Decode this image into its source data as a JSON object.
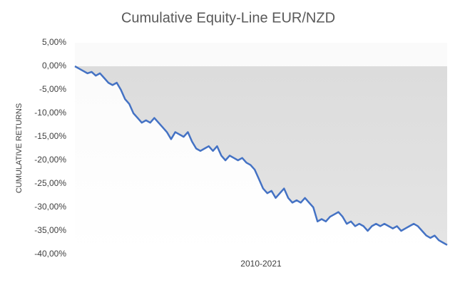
{
  "chart_data": {
    "type": "line",
    "title": "Cumulative Equity-Line EUR/NZD",
    "ylabel": "CUMULATIVE RETURNS",
    "xlabel": "2010-2021",
    "series": [
      {
        "name": "Cumulative returns",
        "color": "#4472c4",
        "values": [
          0,
          -0.5,
          -1,
          -1.5,
          -1.2,
          -2,
          -1.5,
          -2.5,
          -3.5,
          -4,
          -3.5,
          -5,
          -7,
          -8,
          -10,
          -11,
          -12,
          -11.5,
          -12,
          -11,
          -12,
          -13,
          -14,
          -15.5,
          -14,
          -14.5,
          -15,
          -14,
          -16,
          -17.5,
          -18,
          -17.5,
          -17,
          -18,
          -17,
          -19,
          -20,
          -19,
          -19.5,
          -20,
          -19.5,
          -20.5,
          -21,
          -22,
          -24,
          -26,
          -27,
          -26.5,
          -28,
          -27,
          -26,
          -28,
          -29,
          -28.5,
          -29,
          -28,
          -29,
          -30,
          -33,
          -32.5,
          -33,
          -32,
          -31.5,
          -31,
          -32,
          -33.5,
          -33,
          -34,
          -33.5,
          -34,
          -35,
          -34,
          -33.5,
          -34,
          -33.5,
          -34,
          -34.5,
          -34,
          -35,
          -34.5,
          -34,
          -33.5,
          -34,
          -35,
          -36,
          -36.5,
          -36,
          -37,
          -37.5,
          -38
        ]
      }
    ],
    "ylim": [
      -40,
      5
    ],
    "yticks": [
      {
        "value": 5,
        "label": "5,00%"
      },
      {
        "value": 0,
        "label": "0,00%"
      },
      {
        "value": -5,
        "label": "-5,00%"
      },
      {
        "value": -10,
        "label": "-10,00%"
      },
      {
        "value": -15,
        "label": "-15,00%"
      },
      {
        "value": -20,
        "label": "-20,00%"
      },
      {
        "value": -25,
        "label": "-25,00%"
      },
      {
        "value": -30,
        "label": "-30,00%"
      },
      {
        "value": -35,
        "label": "-35,00%"
      },
      {
        "value": -40,
        "label": "-40,00%"
      }
    ],
    "grid": false
  }
}
